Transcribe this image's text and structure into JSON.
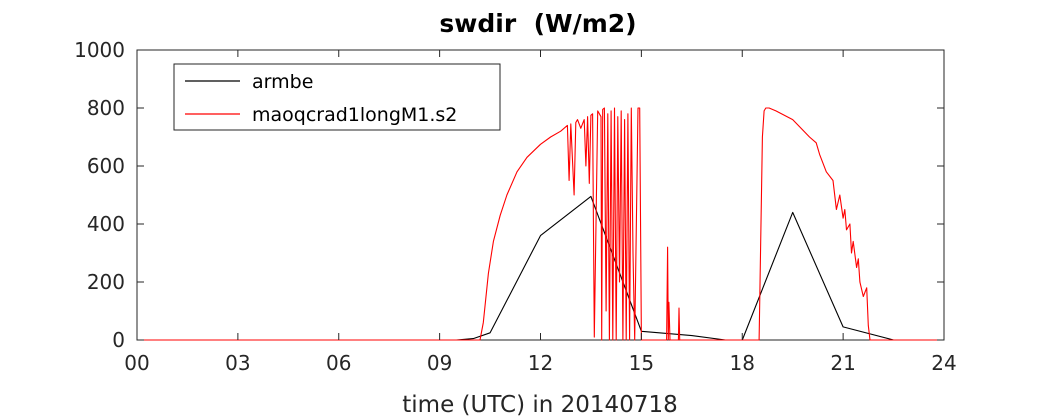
{
  "chart_data": {
    "type": "line",
    "title": "swdir  (W/m2)",
    "xlabel": "time (UTC) in 20140718",
    "ylabel": "",
    "xlim": [
      0,
      24
    ],
    "ylim": [
      0,
      1000
    ],
    "x_ticks": [
      0,
      3,
      6,
      9,
      12,
      15,
      18,
      21,
      24
    ],
    "x_tick_labels": [
      "00",
      "03",
      "06",
      "09",
      "12",
      "15",
      "18",
      "21",
      "24"
    ],
    "y_ticks": [
      0,
      200,
      400,
      600,
      800,
      1000
    ],
    "y_tick_labels": [
      "0",
      "200",
      "400",
      "600",
      "800",
      "1000"
    ],
    "grid": false,
    "legend_position": "top-left",
    "series": [
      {
        "name": "armbe",
        "color": "#000000",
        "x": [
          0,
          1.5,
          3,
          4.5,
          6,
          7.5,
          9,
          9.5,
          10,
          10.5,
          12,
          13.5,
          15,
          16.5,
          17.5,
          18,
          19.5,
          21,
          22.5,
          24
        ],
        "y": [
          0,
          0,
          0,
          0,
          0,
          0,
          0,
          0,
          5,
          25,
          360,
          495,
          30,
          15,
          0,
          0,
          440,
          45,
          0,
          0
        ]
      },
      {
        "name": "maoqcrad1longM1.s2",
        "color": "#ff0000",
        "x": [
          0,
          10.2,
          10.3,
          10.45,
          10.6,
          10.8,
          11.0,
          11.3,
          11.6,
          12.0,
          12.3,
          12.6,
          12.8,
          12.85,
          12.9,
          13.0,
          13.05,
          13.1,
          13.2,
          13.3,
          13.35,
          13.4,
          13.45,
          13.5,
          13.55,
          13.6,
          13.7,
          13.8,
          13.82,
          13.85,
          13.9,
          13.95,
          14.0,
          14.05,
          14.1,
          14.15,
          14.2,
          14.25,
          14.3,
          14.35,
          14.4,
          14.45,
          14.5,
          14.55,
          14.6,
          14.65,
          14.7,
          14.75,
          14.8,
          14.9,
          14.95,
          15.0,
          15.05,
          15.1,
          15.15,
          15.2,
          15.25,
          15.3,
          15.5,
          15.75,
          15.78,
          15.8,
          15.82,
          15.85,
          16.1,
          16.12,
          16.14,
          16.2,
          16.5,
          16.8,
          17.0,
          17.5,
          18.0,
          18.5,
          18.6,
          18.65,
          18.7,
          18.8,
          19.0,
          19.5,
          20.0,
          20.2,
          20.3,
          20.5,
          20.7,
          20.8,
          20.9,
          21.0,
          21.05,
          21.1,
          21.2,
          21.25,
          21.3,
          21.4,
          21.45,
          21.5,
          21.6,
          21.7,
          21.75,
          21.8,
          21.85,
          24
        ],
        "y": [
          0,
          0,
          60,
          230,
          340,
          430,
          500,
          580,
          630,
          675,
          700,
          720,
          740,
          550,
          745,
          500,
          750,
          760,
          730,
          760,
          600,
          770,
          540,
          775,
          780,
          10,
          790,
          770,
          0,
          795,
          800,
          100,
          780,
          0,
          790,
          0,
          800,
          0,
          770,
          200,
          790,
          0,
          760,
          0,
          780,
          0,
          800,
          300,
          0,
          800,
          800,
          0,
          0,
          0,
          0,
          0,
          0,
          0,
          0,
          0,
          320,
          0,
          130,
          0,
          0,
          110,
          0,
          0,
          0,
          0,
          0,
          0,
          0,
          0,
          700,
          790,
          800,
          800,
          790,
          760,
          700,
          680,
          640,
          580,
          550,
          450,
          500,
          420,
          450,
          380,
          400,
          300,
          340,
          250,
          280,
          200,
          150,
          180,
          50,
          0,
          0,
          0
        ]
      }
    ]
  }
}
